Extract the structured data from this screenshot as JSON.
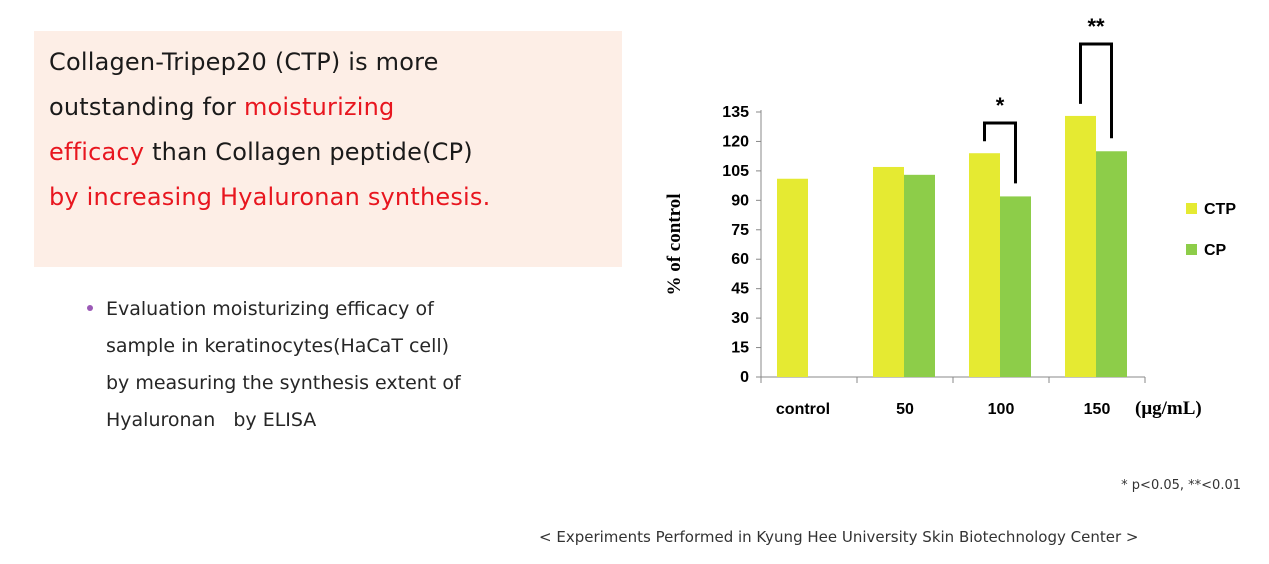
{
  "headline": {
    "line1": "Collagen-Tripep20 (CTP) is more",
    "line2a": "outstanding for ",
    "line2b": "moisturizing",
    "line3a": "efficacy",
    "line3b": " than Collagen peptide(CP)",
    "line4": "by increasing Hyaluronan synthesis."
  },
  "bullet": {
    "lines": [
      "Evaluation moisturizing efficacy of",
      "sample in keratinocytes(HaCaT cell)",
      "by measuring the synthesis extent of",
      "Hyaluronan   by ELISA"
    ]
  },
  "pvalue_note": "* p<0.05, **<0.01",
  "footer": "< Experiments Performed in Kyung Hee University Skin Biotechnology Center >",
  "colors": {
    "ctp": "#e5ea32",
    "cp": "#8dcd49",
    "red_text": "#e8161f",
    "box_bg": "#fdeee6"
  },
  "chart_data": {
    "type": "bar",
    "categories": [
      "control",
      "50",
      "100",
      "150"
    ],
    "series": [
      {
        "name": "CTP",
        "values": [
          101,
          107,
          114,
          133
        ]
      },
      {
        "name": "CP",
        "values": [
          null,
          103,
          92,
          115
        ]
      }
    ],
    "ylabel": "% of control",
    "x_unit_label": "(μg/mL)",
    "ylim": [
      0,
      135
    ],
    "yticks": [
      0,
      15,
      30,
      45,
      60,
      75,
      90,
      105,
      120,
      135
    ],
    "legend_position": "right",
    "significance": [
      {
        "category": "100",
        "mark": "*"
      },
      {
        "category": "150",
        "mark": "**"
      }
    ]
  }
}
